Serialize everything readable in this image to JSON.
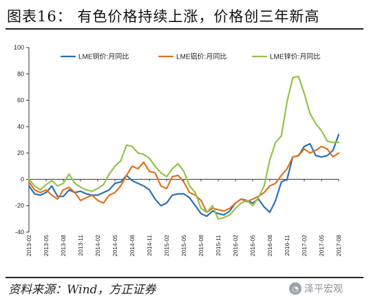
{
  "header": {
    "title": "图表16： 有色价格持续上涨，价格创三年新高"
  },
  "footer": {
    "source": "资料来源：Wind，方正证券",
    "watermark": "泽平宏观"
  },
  "chart_data": {
    "type": "line",
    "title": "",
    "xlabel": "",
    "ylabel": "",
    "ylim": [
      -40,
      100
    ],
    "yticks": [
      -40,
      -20,
      0,
      20,
      40,
      60,
      80,
      100
    ],
    "x_tick_labels": [
      "2013-02",
      "2013-05",
      "2013-08",
      "2013-11",
      "2014-02",
      "2014-05",
      "2014-08",
      "2014-11",
      "2015-02",
      "2015-05",
      "2015-08",
      "2015-11",
      "2016-02",
      "2016-05",
      "2016-08",
      "2016-11",
      "2017-02",
      "2017-05",
      "2017-08"
    ],
    "x": [
      "2013-02",
      "2013-03",
      "2013-04",
      "2013-05",
      "2013-06",
      "2013-07",
      "2013-08",
      "2013-09",
      "2013-10",
      "2013-11",
      "2013-12",
      "2014-01",
      "2014-02",
      "2014-03",
      "2014-04",
      "2014-05",
      "2014-06",
      "2014-07",
      "2014-08",
      "2014-09",
      "2014-10",
      "2014-11",
      "2014-12",
      "2015-01",
      "2015-02",
      "2015-03",
      "2015-04",
      "2015-05",
      "2015-06",
      "2015-07",
      "2015-08",
      "2015-09",
      "2015-10",
      "2015-11",
      "2015-12",
      "2016-01",
      "2016-02",
      "2016-03",
      "2016-04",
      "2016-05",
      "2016-06",
      "2016-07",
      "2016-08",
      "2016-09",
      "2016-10",
      "2016-11",
      "2016-12",
      "2017-01",
      "2017-02",
      "2017-03",
      "2017-04",
      "2017-05",
      "2017-06",
      "2017-07",
      "2017-08"
    ],
    "legend_position": "top",
    "grid": false,
    "series": [
      {
        "name": "LME铜价:月同比",
        "color": "#2a6fb4",
        "values": [
          -5,
          -11,
          -12,
          -10,
          -5,
          -13,
          -13,
          -8,
          -10,
          -9,
          -11,
          -12,
          -12,
          -10,
          -8,
          -3,
          -2,
          3,
          -1,
          -3,
          -5,
          -8,
          -15,
          -20,
          -18,
          -12,
          -11,
          -11,
          -14,
          -20,
          -26,
          -28,
          -24,
          -26,
          -27,
          -24,
          -18,
          -15,
          -16,
          -18,
          -15,
          -21,
          -25,
          -16,
          -2,
          0,
          17,
          18,
          25,
          27,
          18,
          17,
          18,
          22,
          34
        ]
      },
      {
        "name": "LME铝价:月同比",
        "color": "#e07020",
        "values": [
          -2,
          -8,
          -10,
          -8,
          -12,
          -15,
          -8,
          -6,
          -10,
          -16,
          -14,
          -12,
          -16,
          -18,
          -12,
          -10,
          -5,
          3,
          10,
          8,
          13,
          6,
          5,
          -5,
          -7,
          2,
          3,
          -2,
          -10,
          -12,
          -16,
          -25,
          -22,
          -23,
          -24,
          -22,
          -18,
          -15,
          -17,
          -15,
          -13,
          -10,
          -5,
          -3,
          3,
          8,
          17,
          18,
          23,
          20,
          22,
          25,
          23,
          17,
          20
        ]
      },
      {
        "name": "LME锌价:月同比",
        "color": "#93c24a",
        "values": [
          0,
          -5,
          -8,
          -4,
          -1,
          -5,
          -3,
          4,
          -3,
          -6,
          -8,
          -9,
          -7,
          -4,
          4,
          10,
          14,
          26,
          25,
          20,
          19,
          16,
          10,
          5,
          2,
          8,
          12,
          6,
          -5,
          -10,
          -22,
          -25,
          -20,
          -30,
          -29,
          -27,
          -22,
          -18,
          -16,
          -20,
          -14,
          -5,
          15,
          28,
          33,
          59,
          77,
          78,
          65,
          50,
          42,
          37,
          29,
          28,
          28
        ]
      }
    ]
  }
}
